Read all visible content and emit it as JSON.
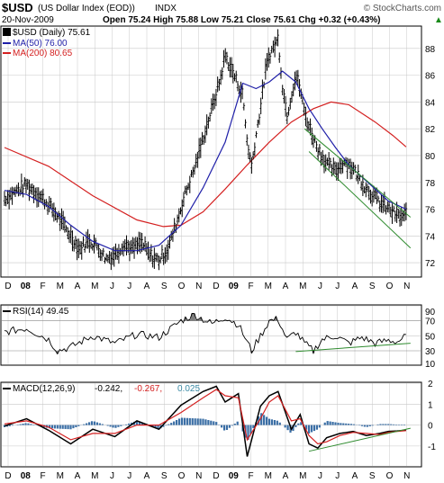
{
  "header": {
    "ticker": "$USD",
    "name": "(US Dollar Index (EOD))",
    "exchange": "INDX",
    "watermark": "© StockCharts.com",
    "date": "20-Nov-2009",
    "quote": "Open 75.24  High 75.88  Low 75.21  Close 75.61  Chg +0.32 (+0.43%)",
    "quote_arrow": "▲"
  },
  "legend": {
    "price": "$USD (Daily) 75.61",
    "ma50": "MA(50) 76.00",
    "ma200": "MA(200) 80.65",
    "rsi": "RSI(14) 49.45",
    "macd_label": "MACD(12,26,9)",
    "macd_val": "-0.242,",
    "signal_val": "-0.267,",
    "hist_val": "0.025"
  },
  "colors": {
    "price": "#000000",
    "ma50": "#1f1fa8",
    "ma200": "#d42020",
    "trend": "#2e8b2e",
    "rsi_fill": "#7a7a7a",
    "hist": "#3a6ea5",
    "grid": "#c8c8c8"
  },
  "chart_data": [
    {
      "type": "line",
      "panel": "price",
      "ylim": [
        71,
        89.6
      ],
      "y_ticks": [
        72,
        74,
        76,
        78,
        80,
        82,
        84,
        86,
        88
      ],
      "x_tick_labels": [
        "D",
        "08",
        "F",
        "M",
        "A",
        "M",
        "J",
        "J",
        "A",
        "S",
        "O",
        "N",
        "D",
        "09",
        "F",
        "M",
        "A",
        "M",
        "J",
        "J",
        "A",
        "S",
        "O",
        "N"
      ],
      "series": [
        {
          "name": "$USD (Daily)",
          "style": "ohlc-bars",
          "points": [
            [
              0,
              76.8
            ],
            [
              3,
              77.4
            ],
            [
              5,
              77.8
            ],
            [
              8,
              77.0
            ],
            [
              10,
              76.3
            ],
            [
              12,
              75.5
            ],
            [
              15,
              74.0
            ],
            [
              17,
              73.0
            ],
            [
              19,
              73.7
            ],
            [
              21,
              73.2
            ],
            [
              23,
              72.3
            ],
            [
              25,
              72.6
            ],
            [
              27,
              73.4
            ],
            [
              29,
              73.0
            ],
            [
              31,
              73.5
            ],
            [
              33,
              72.5
            ],
            [
              35,
              72.2
            ],
            [
              37,
              73.0
            ],
            [
              39,
              75.0
            ],
            [
              41,
              77.2
            ],
            [
              43,
              79.0
            ],
            [
              45,
              81.3
            ],
            [
              47,
              83.5
            ],
            [
              49,
              85.8
            ],
            [
              50,
              87.5
            ],
            [
              52,
              86.0
            ],
            [
              54,
              84.5
            ],
            [
              55,
              81.0
            ],
            [
              56,
              79.2
            ],
            [
              57,
              81.5
            ],
            [
              58,
              83.5
            ],
            [
              59,
              86.0
            ],
            [
              60,
              87.5
            ],
            [
              62,
              88.7
            ],
            [
              63,
              85.2
            ],
            [
              64,
              83.0
            ],
            [
              65,
              84.5
            ],
            [
              66,
              86.0
            ],
            [
              67,
              85.0
            ],
            [
              68,
              83.2
            ],
            [
              69,
              82.2
            ],
            [
              71,
              80.5
            ],
            [
              73,
              79.4
            ],
            [
              75,
              78.8
            ],
            [
              77,
              79.6
            ],
            [
              79,
              79.0
            ],
            [
              81,
              78.0
            ],
            [
              83,
              77.2
            ],
            [
              85,
              76.5
            ],
            [
              87,
              76.0
            ],
            [
              89,
              75.5
            ],
            [
              90,
              75.4
            ],
            [
              91,
              75.6
            ]
          ]
        },
        {
          "name": "MA(50)",
          "values_at": [
            [
              0,
              77.4
            ],
            [
              5,
              77.1
            ],
            [
              10,
              76.2
            ],
            [
              15,
              74.8
            ],
            [
              20,
              73.6
            ],
            [
              25,
              72.9
            ],
            [
              30,
              72.9
            ],
            [
              35,
              73.3
            ],
            [
              40,
              74.8
            ],
            [
              45,
              77.6
            ],
            [
              50,
              81.0
            ],
            [
              54,
              85.4
            ],
            [
              57,
              85.0
            ],
            [
              60,
              85.5
            ],
            [
              63,
              86.3
            ],
            [
              66,
              85.5
            ],
            [
              69,
              83.5
            ],
            [
              72,
              82.0
            ],
            [
              75,
              80.6
            ],
            [
              78,
              79.3
            ],
            [
              81,
              78.4
            ],
            [
              84,
              77.5
            ],
            [
              87,
              76.6
            ],
            [
              91,
              76.0
            ]
          ]
        },
        {
          "name": "MA(200)",
          "values_at": [
            [
              0,
              80.6
            ],
            [
              10,
              79.2
            ],
            [
              20,
              77.0
            ],
            [
              30,
              75.2
            ],
            [
              36,
              74.7
            ],
            [
              40,
              74.8
            ],
            [
              45,
              75.8
            ],
            [
              50,
              77.5
            ],
            [
              55,
              79.3
            ],
            [
              60,
              81.0
            ],
            [
              65,
              82.5
            ],
            [
              70,
              83.5
            ],
            [
              74,
              84.0
            ],
            [
              78,
              83.8
            ],
            [
              84,
              82.5
            ],
            [
              88,
              81.5
            ],
            [
              91,
              80.65
            ]
          ]
        }
      ],
      "annotations": [
        {
          "type": "trendline",
          "from": [
            68,
            82.0
          ],
          "to": [
            92,
            75.4
          ]
        },
        {
          "type": "trendline",
          "from": [
            69,
            80.3
          ],
          "to": [
            92,
            73.1
          ]
        }
      ]
    },
    {
      "type": "line",
      "panel": "rsi",
      "ylim": [
        12,
        90
      ],
      "y_ticks": [
        10,
        30,
        50,
        70,
        90
      ],
      "overbought": 70,
      "oversold": 30,
      "series": [
        {
          "name": "RSI(14)",
          "values_at": [
            [
              0,
              55
            ],
            [
              5,
              60
            ],
            [
              10,
              45
            ],
            [
              12,
              30
            ],
            [
              15,
              35
            ],
            [
              20,
              50
            ],
            [
              25,
              40
            ],
            [
              30,
              52
            ],
            [
              35,
              48
            ],
            [
              40,
              70
            ],
            [
              43,
              78
            ],
            [
              47,
              66
            ],
            [
              50,
              75
            ],
            [
              53,
              65
            ],
            [
              56,
              30
            ],
            [
              58,
              50
            ],
            [
              60,
              70
            ],
            [
              62,
              72
            ],
            [
              64,
              45
            ],
            [
              66,
              55
            ],
            [
              68,
              40
            ],
            [
              70,
              30
            ],
            [
              72,
              45
            ],
            [
              75,
              50
            ],
            [
              78,
              40
            ],
            [
              81,
              48
            ],
            [
              84,
              40
            ],
            [
              87,
              44
            ],
            [
              89,
              42
            ],
            [
              91,
              49.45
            ]
          ]
        }
      ],
      "annotations": [
        {
          "type": "trendline",
          "from": [
            66,
            29
          ],
          "to": [
            92,
            40
          ]
        }
      ]
    },
    {
      "type": "line",
      "panel": "macd",
      "ylim": [
        -1.95,
        2.0
      ],
      "y_ticks": [
        -1,
        0,
        1,
        2
      ],
      "series": [
        {
          "name": "MACD",
          "values_at": [
            [
              0,
              -0.05
            ],
            [
              5,
              0.3
            ],
            [
              10,
              -0.25
            ],
            [
              15,
              -0.9
            ],
            [
              20,
              -0.2
            ],
            [
              25,
              -0.55
            ],
            [
              30,
              0.2
            ],
            [
              35,
              -0.2
            ],
            [
              40,
              0.95
            ],
            [
              45,
              1.6
            ],
            [
              48,
              1.85
            ],
            [
              50,
              1.1
            ],
            [
              53,
              1.5
            ],
            [
              55,
              -1.5
            ],
            [
              58,
              0.9
            ],
            [
              60,
              1.4
            ],
            [
              62,
              1.6
            ],
            [
              65,
              -0.2
            ],
            [
              67,
              0.5
            ],
            [
              69,
              -0.9
            ],
            [
              71,
              -1.1
            ],
            [
              73,
              -0.6
            ],
            [
              76,
              -0.4
            ],
            [
              79,
              -0.3
            ],
            [
              82,
              -0.5
            ],
            [
              85,
              -0.4
            ],
            [
              87,
              -0.3
            ],
            [
              89,
              -0.28
            ],
            [
              91,
              -0.242
            ]
          ]
        },
        {
          "name": "Signal",
          "values_at": [
            [
              0,
              0.05
            ],
            [
              5,
              0.2
            ],
            [
              10,
              -0.1
            ],
            [
              15,
              -0.7
            ],
            [
              20,
              -0.4
            ],
            [
              25,
              -0.4
            ],
            [
              30,
              0.0
            ],
            [
              35,
              0.0
            ],
            [
              40,
              0.6
            ],
            [
              45,
              1.3
            ],
            [
              48,
              1.7
            ],
            [
              50,
              1.4
            ],
            [
              53,
              1.3
            ],
            [
              55,
              -0.7
            ],
            [
              58,
              0.3
            ],
            [
              60,
              1.1
            ],
            [
              62,
              1.4
            ],
            [
              65,
              0.2
            ],
            [
              67,
              0.3
            ],
            [
              69,
              -0.5
            ],
            [
              71,
              -0.9
            ],
            [
              73,
              -0.8
            ],
            [
              76,
              -0.5
            ],
            [
              79,
              -0.35
            ],
            [
              82,
              -0.4
            ],
            [
              85,
              -0.45
            ],
            [
              87,
              -0.35
            ],
            [
              89,
              -0.3
            ],
            [
              91,
              -0.267
            ]
          ]
        }
      ],
      "annotations": [
        {
          "type": "trendline",
          "from": [
            69,
            -1.25
          ],
          "to": [
            92,
            -0.15
          ]
        }
      ]
    }
  ]
}
